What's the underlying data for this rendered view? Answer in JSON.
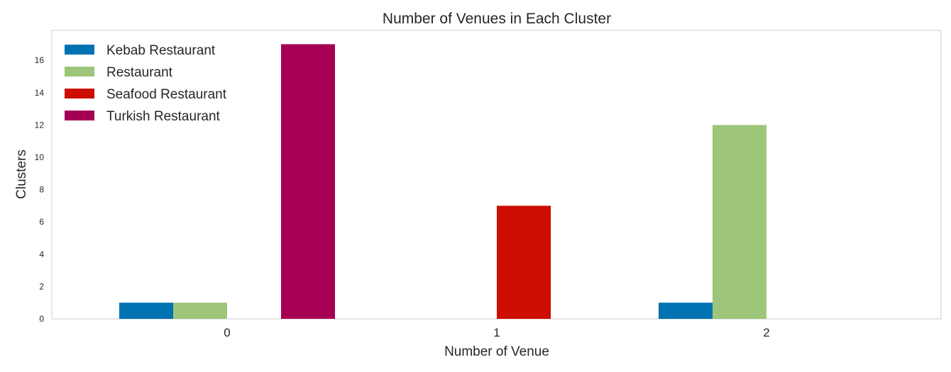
{
  "chart_data": {
    "type": "bar",
    "title": "Number of Venues in Each Cluster",
    "xlabel": "Number of Venue",
    "ylabel": "Clusters",
    "categories": [
      "0",
      "1",
      "2"
    ],
    "series": [
      {
        "name": "Kebab Restaurant",
        "color": "#0072b2",
        "values": [
          1,
          0,
          1
        ]
      },
      {
        "name": "Restaurant",
        "color": "#9dc67a",
        "values": [
          1,
          0,
          12
        ]
      },
      {
        "name": "Seafood Restaurant",
        "color": "#cc0d00",
        "values": [
          0,
          7,
          0
        ]
      },
      {
        "name": "Turkish Restaurant",
        "color": "#a50053",
        "values": [
          17,
          0,
          0
        ]
      }
    ],
    "ylim": [
      0,
      17.85
    ],
    "yticks": [
      0,
      2,
      4,
      6,
      8,
      10,
      12,
      14,
      16
    ],
    "grid": false,
    "legend_position": "top-left"
  }
}
